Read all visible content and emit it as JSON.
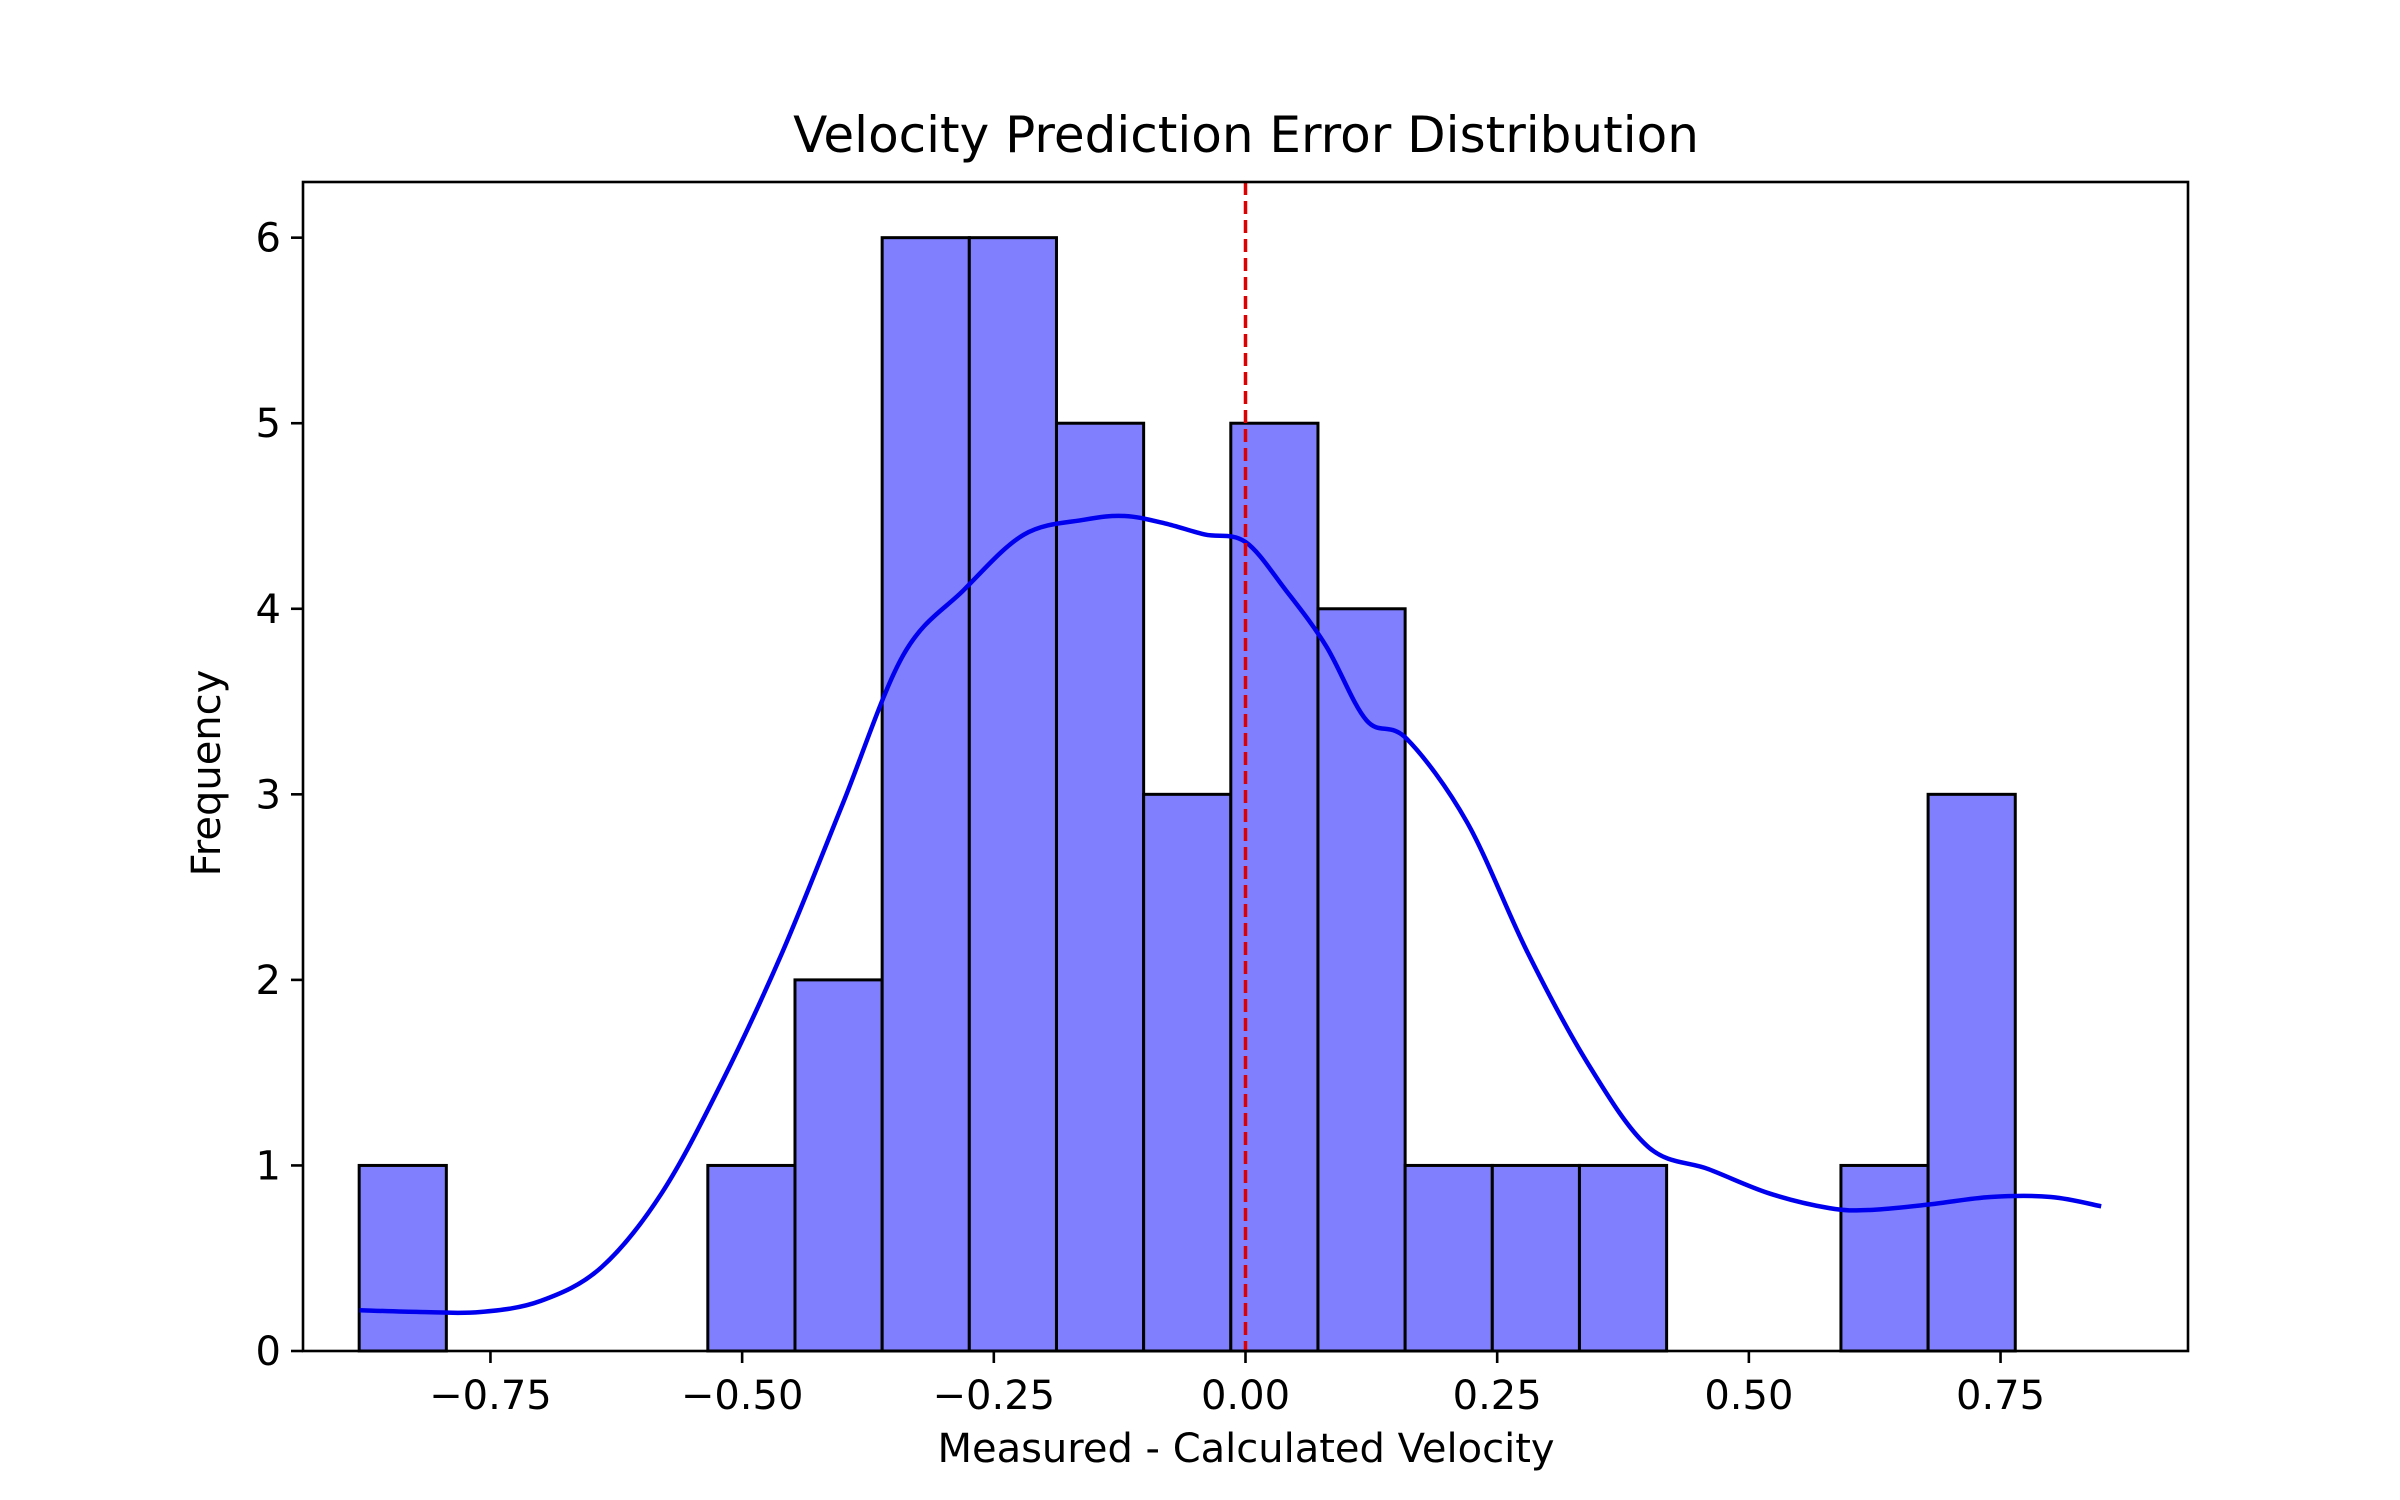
{
  "chart_data": {
    "type": "bar",
    "title": "Velocity Prediction Error Distribution",
    "xlabel": "Measured - Calculated Velocity",
    "ylabel": "Frequency",
    "xlim": [
      -0.9362,
      0.9362
    ],
    "ylim": [
      0,
      6.3
    ],
    "xticks": [
      -0.75,
      -0.5,
      -0.25,
      0.0,
      0.25,
      0.5,
      0.75
    ],
    "xtick_labels": [
      "−0.75",
      "−0.50",
      "−0.25",
      "0.00",
      "0.25",
      "0.50",
      "0.75"
    ],
    "yticks": [
      0,
      1,
      2,
      3,
      4,
      5,
      6
    ],
    "ytick_labels": [
      "0",
      "1",
      "2",
      "3",
      "4",
      "5",
      "6"
    ],
    "grid": false,
    "bins": {
      "start": -0.8804,
      "width": 0.08658,
      "counts": [
        1,
        0,
        0,
        0,
        1,
        2,
        6,
        6,
        5,
        3,
        5,
        4,
        1,
        1,
        1,
        0,
        0,
        1,
        3
      ]
    },
    "kde": {
      "x": [
        -0.88,
        -0.82,
        -0.76,
        -0.7,
        -0.64,
        -0.58,
        -0.52,
        -0.46,
        -0.4,
        -0.34,
        -0.28,
        -0.22,
        -0.16,
        -0.12,
        -0.08,
        -0.04,
        0.0,
        0.04,
        0.08,
        0.12,
        0.16,
        0.22,
        0.28,
        0.34,
        0.4,
        0.46,
        0.52,
        0.58,
        0.62,
        0.68,
        0.74,
        0.8,
        0.85
      ],
      "y": [
        0.22,
        0.21,
        0.21,
        0.27,
        0.45,
        0.85,
        1.45,
        2.15,
        2.95,
        3.75,
        4.1,
        4.4,
        4.48,
        4.5,
        4.46,
        4.4,
        4.36,
        4.1,
        3.8,
        3.4,
        3.3,
        2.85,
        2.15,
        1.55,
        1.1,
        0.98,
        0.85,
        0.77,
        0.76,
        0.79,
        0.83,
        0.83,
        0.78
      ]
    },
    "reference_line_x": 0.0,
    "colors": {
      "bar_fill": "#8080ff",
      "bar_edge": "#000000",
      "kde_line": "#0000ee",
      "reference_line": "#dd0000"
    }
  }
}
